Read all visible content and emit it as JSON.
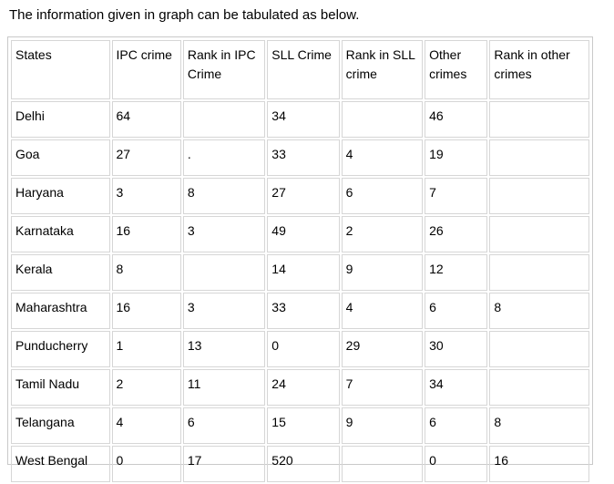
{
  "intro_text": "The information given in graph can be tabulated as below.",
  "table": {
    "headers": [
      "States",
      "IPC crime",
      "Rank in IPC Crime",
      "SLL Crime",
      "Rank in SLL crime",
      "Other crimes",
      "Rank in other crimes"
    ],
    "rows": [
      [
        "Delhi",
        "64",
        "",
        "34",
        "",
        "46",
        ""
      ],
      [
        "Goa",
        "27",
        ".",
        "33",
        "4",
        "19",
        ""
      ],
      [
        "Haryana",
        "3",
        "8",
        "27",
        "6",
        "7",
        ""
      ],
      [
        "Karnataka",
        "16",
        "3",
        "49",
        "2",
        "26",
        ""
      ],
      [
        "Kerala",
        "8",
        "",
        "14",
        "9",
        "12",
        ""
      ],
      [
        "Maharashtra",
        "16",
        "3",
        "33",
        "4",
        "6",
        "8"
      ],
      [
        "Punducherry",
        "1",
        "13",
        "0",
        "29",
        "30",
        ""
      ],
      [
        "Tamil Nadu",
        "2",
        "11",
        "24",
        "7",
        "34",
        ""
      ],
      [
        "Telangana",
        "4",
        "6",
        "15",
        "9",
        "6",
        "8"
      ],
      [
        "West Bengal",
        "0",
        "17",
        "520",
        "",
        "0",
        "16"
      ]
    ]
  }
}
